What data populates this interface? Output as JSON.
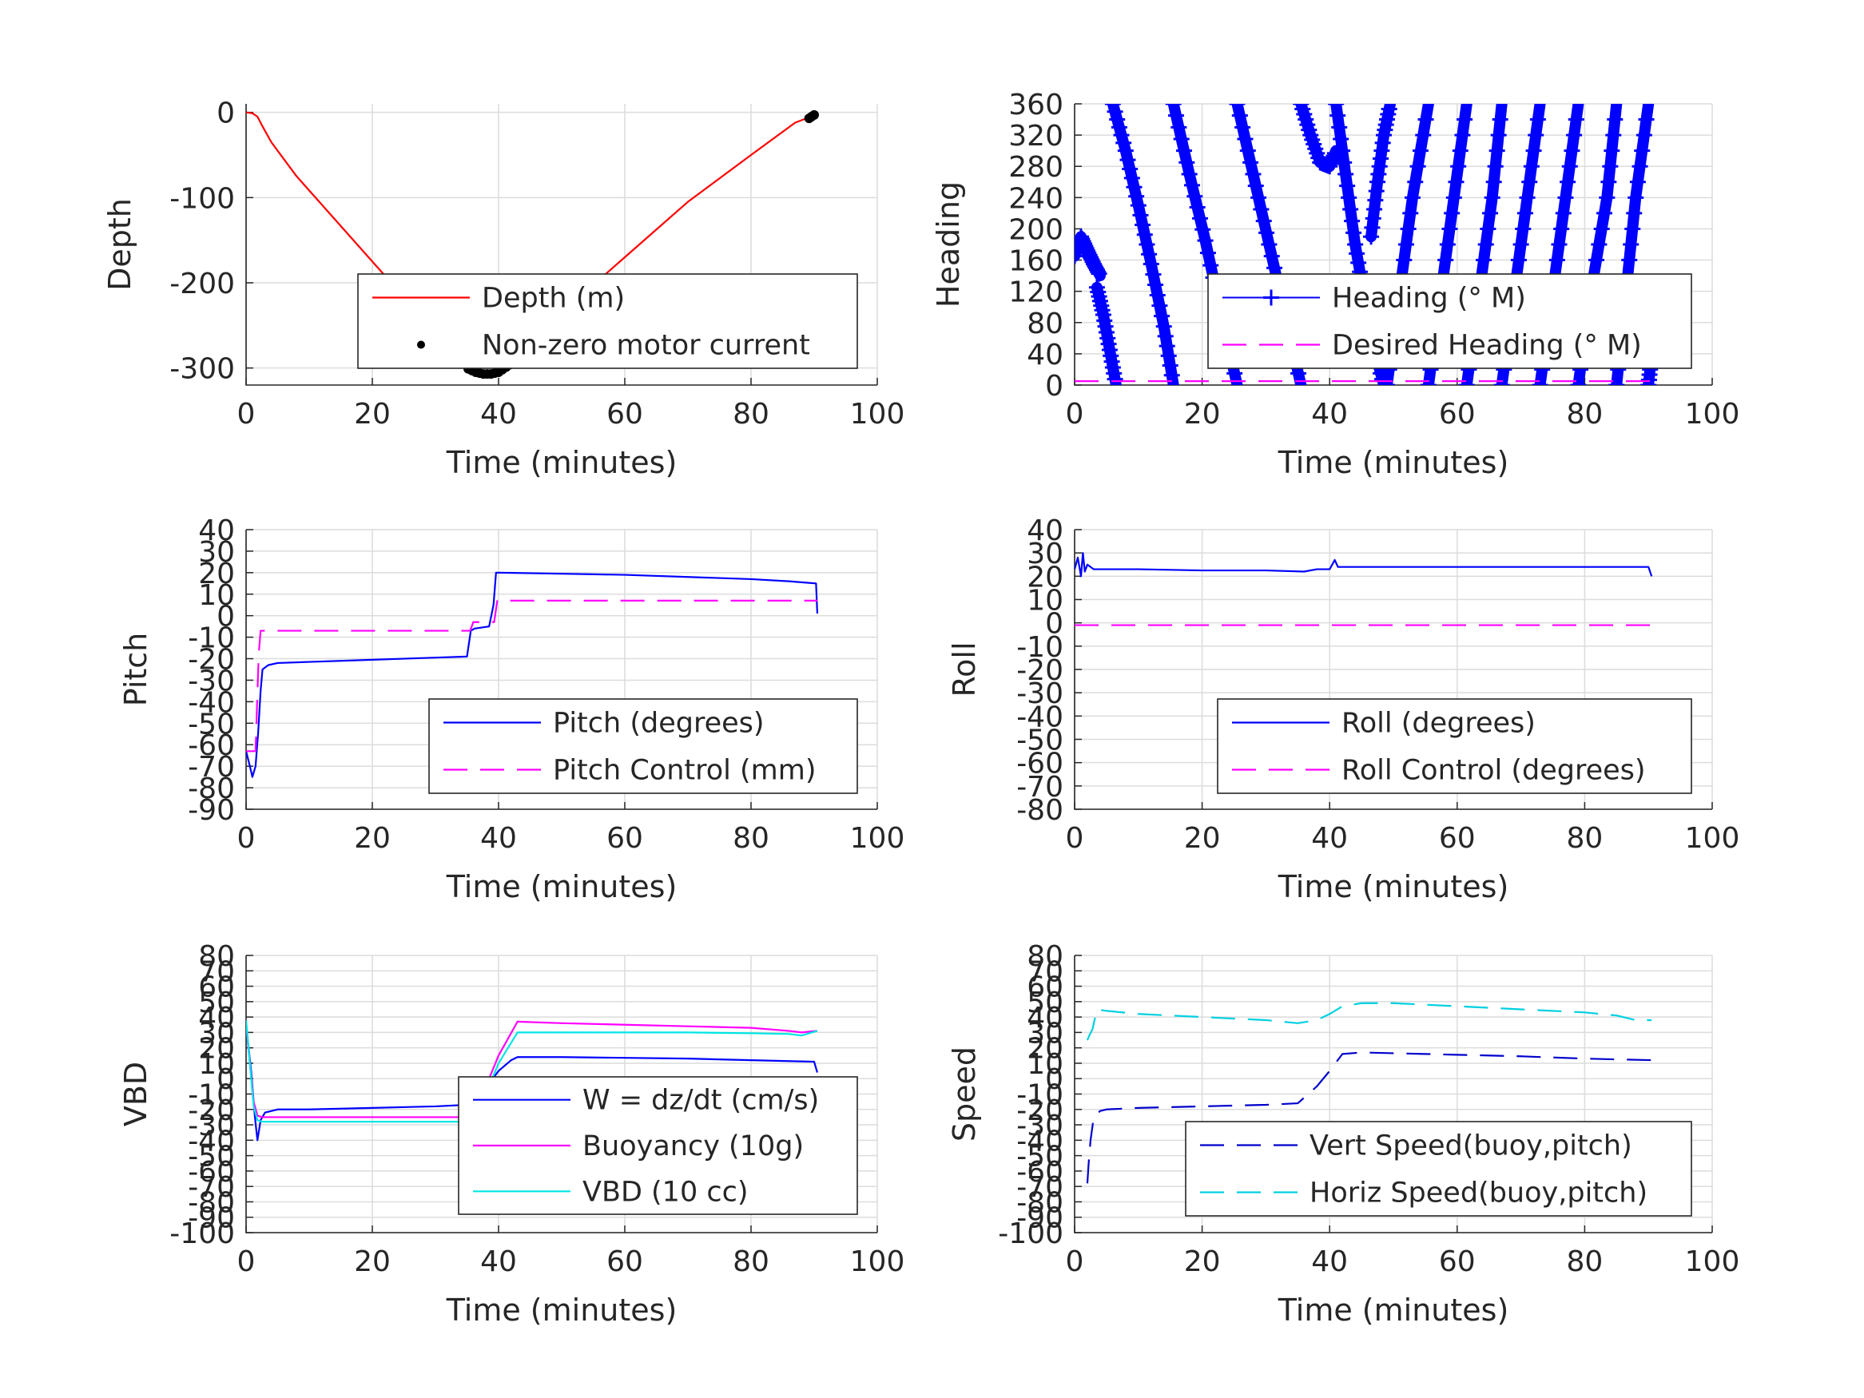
{
  "chart_data": [
    {
      "id": "depth",
      "type": "line",
      "xlabel": "Time (minutes)",
      "ylabel": "Depth",
      "xlim": [
        0,
        100
      ],
      "ylim": [
        -320,
        10
      ],
      "xticks": [
        0,
        20,
        40,
        60,
        80,
        100
      ],
      "yticks": [
        0,
        -100,
        -200,
        -300
      ],
      "grid": true,
      "legend_placement": "bottom-right",
      "series": [
        {
          "name": "Depth (m)",
          "color": "#ff0000",
          "style": "solid",
          "x": [
            0,
            1,
            1.8,
            2.5,
            4,
            8,
            14,
            20,
            26,
            30,
            34,
            35.5,
            37,
            38.5,
            40,
            41.5,
            43,
            50,
            60,
            70,
            80,
            87,
            89.5,
            90.5
          ],
          "y": [
            0,
            -1,
            -5,
            -15,
            -35,
            -75,
            -125,
            -175,
            -225,
            -258,
            -292,
            -302,
            -305,
            -306,
            -305,
            -300,
            -292,
            -235,
            -170,
            -105,
            -50,
            -12,
            -5,
            -2
          ]
        },
        {
          "name": "Non-zero motor current",
          "color": "#000000",
          "style": "dots",
          "x": [
            35.2,
            35.8,
            36.4,
            37,
            37.6,
            38.2,
            38.8,
            39.4,
            40,
            40.6,
            41.2,
            41.8,
            42.4,
            89.2,
            89.6,
            90
          ],
          "y": [
            -301,
            -303,
            -305,
            -306,
            -307,
            -307,
            -307,
            -306,
            -305,
            -302,
            -299,
            -296,
            -293,
            -7,
            -5,
            -3
          ]
        }
      ]
    },
    {
      "id": "heading",
      "type": "scatter",
      "xlabel": "Time (minutes)",
      "ylabel": "Heading",
      "xlim": [
        0,
        100
      ],
      "ylim": [
        0,
        360
      ],
      "xticks": [
        0,
        20,
        40,
        60,
        80,
        100
      ],
      "yticks": [
        0,
        40,
        80,
        120,
        160,
        200,
        240,
        280,
        320,
        360
      ],
      "grid": true,
      "legend_placement": "bottom-right",
      "series": [
        {
          "name": "Heading (° M)",
          "color": "#0000ff",
          "style": "plus",
          "segments": [
            {
              "x": [
                0,
                1,
                2,
                3,
                4
              ],
              "y": [
                165,
                190,
                172,
                155,
                140
              ]
            },
            {
              "x": [
                3.5,
                4.5,
                5.5,
                6.5
              ],
              "y": [
                125,
                90,
                45,
                0
              ]
            },
            {
              "x": [
                6,
                8,
                10,
                12,
                14,
                15.5
              ],
              "y": [
                360,
                300,
                230,
                155,
                75,
                0
              ]
            },
            {
              "x": [
                15.5,
                18,
                20.5,
                23,
                25.5
              ],
              "y": [
                360,
                270,
                185,
                90,
                0
              ]
            },
            {
              "x": [
                25.5,
                28,
                30.5,
                33,
                35.5
              ],
              "y": [
                360,
                270,
                180,
                90,
                0
              ]
            },
            {
              "x": [
                35.5,
                37,
                38.5,
                40,
                41
              ],
              "y": [
                360,
                320,
                285,
                280,
                300
              ]
            },
            {
              "x": [
                41,
                42.5,
                44,
                45.5,
                47,
                48.5
              ],
              "y": [
                360,
                270,
                180,
                110,
                45,
                0
              ]
            },
            {
              "x": [
                46.5,
                47.5,
                48.5,
                49.5
              ],
              "y": [
                190,
                260,
                320,
                360
              ]
            },
            {
              "x": [
                49,
                51,
                53,
                55.5
              ],
              "y": [
                0,
                120,
                240,
                360
              ]
            },
            {
              "x": [
                55.5,
                57.5,
                59.5,
                61.5
              ],
              "y": [
                0,
                120,
                240,
                360
              ]
            },
            {
              "x": [
                61.5,
                63.5,
                65.5,
                67
              ],
              "y": [
                0,
                120,
                240,
                360
              ]
            },
            {
              "x": [
                67,
                69,
                71,
                73
              ],
              "y": [
                0,
                120,
                240,
                360
              ]
            },
            {
              "x": [
                73,
                75,
                77,
                79
              ],
              "y": [
                0,
                120,
                240,
                360
              ]
            },
            {
              "x": [
                79,
                81,
                83.5,
                85
              ],
              "y": [
                0,
                120,
                240,
                360
              ]
            },
            {
              "x": [
                85,
                86.5,
                88,
                90
              ],
              "y": [
                0,
                120,
                240,
                360
              ]
            },
            {
              "x": [
                90,
                90.5,
                91
              ],
              "y": [
                0,
                40,
                78
              ]
            }
          ]
        },
        {
          "name": "Desired Heading (° M)",
          "color": "#ff00ff",
          "style": "dashed",
          "x": [
            0,
            91
          ],
          "y": [
            5,
            5
          ]
        }
      ]
    },
    {
      "id": "pitch",
      "type": "line",
      "xlabel": "Time (minutes)",
      "ylabel": "Pitch",
      "xlim": [
        0,
        100
      ],
      "ylim": [
        -90,
        40
      ],
      "xticks": [
        0,
        20,
        40,
        60,
        80,
        100
      ],
      "yticks": [
        40,
        30,
        20,
        10,
        0,
        -10,
        -20,
        -30,
        -40,
        -50,
        -60,
        -70,
        -80,
        -90
      ],
      "grid": true,
      "legend_placement": "bottom-right",
      "series": [
        {
          "name": "Pitch (degrees)",
          "color": "#0000ff",
          "style": "solid",
          "x": [
            0,
            0.6,
            1,
            1.5,
            1.9,
            2.3,
            2.6,
            3.5,
            5,
            10,
            20,
            30,
            35,
            35.6,
            36.2,
            38.5,
            39.2,
            39.6,
            40,
            50,
            60,
            70,
            80,
            86,
            90.3,
            90.5
          ],
          "y": [
            -63,
            -70,
            -75,
            -70,
            -55,
            -35,
            -25,
            -23,
            -22,
            -21.5,
            -20.5,
            -19.5,
            -19,
            -7,
            -6,
            -5,
            5,
            20,
            20,
            19.5,
            19,
            18,
            17,
            16,
            15,
            1
          ]
        },
        {
          "name": "Pitch Control (mm)",
          "color": "#ff00ff",
          "style": "dashed",
          "x": [
            0,
            1.5,
            2,
            2.3,
            35.5,
            36,
            39.3,
            39.8,
            90.5
          ],
          "y": [
            -63,
            -63,
            -18,
            -7,
            -7,
            -3,
            -3,
            7,
            7
          ]
        }
      ]
    },
    {
      "id": "roll",
      "type": "line",
      "xlabel": "Time (minutes)",
      "ylabel": "Roll",
      "xlim": [
        0,
        100
      ],
      "ylim": [
        -80,
        40
      ],
      "xticks": [
        0,
        20,
        40,
        60,
        80,
        100
      ],
      "yticks": [
        40,
        30,
        20,
        10,
        0,
        -10,
        -20,
        -30,
        -40,
        -50,
        -60,
        -70,
        -80
      ],
      "grid": true,
      "legend_placement": "bottom-right",
      "series": [
        {
          "name": "Roll (degrees)",
          "color": "#0000ff",
          "style": "solid",
          "x": [
            0,
            0.5,
            1,
            1.3,
            1.6,
            2,
            3,
            10,
            20,
            30,
            36,
            38,
            40,
            40.8,
            41.3,
            50,
            60,
            70,
            80,
            90,
            90.5
          ],
          "y": [
            23,
            28,
            20,
            30,
            22,
            25,
            23,
            23,
            22.5,
            22.5,
            22,
            23,
            23,
            27,
            24,
            24,
            24,
            24,
            24,
            24,
            20
          ]
        },
        {
          "name": "Roll Control (degrees)",
          "color": "#ff00ff",
          "style": "dashed",
          "x": [
            0,
            91
          ],
          "y": [
            -1,
            -1
          ]
        }
      ]
    },
    {
      "id": "vbd",
      "type": "line",
      "xlabel": "Time (minutes)",
      "ylabel": "VBD",
      "xlim": [
        0,
        100
      ],
      "ylim": [
        -100,
        80
      ],
      "xticks": [
        0,
        20,
        40,
        60,
        80,
        100
      ],
      "yticks": [
        80,
        70,
        60,
        50,
        40,
        30,
        20,
        10,
        0,
        -10,
        -20,
        -30,
        -40,
        -50,
        -60,
        -70,
        -80,
        -90,
        -100
      ],
      "grid": true,
      "legend_placement": "bottom-right",
      "series": [
        {
          "name": "W = dz/dt (cm/s)",
          "color": "#0000ff",
          "style": "solid",
          "x": [
            0,
            0.8,
            1.4,
            1.8,
            2.3,
            3,
            5,
            10,
            20,
            30,
            35,
            35.6,
            38,
            40,
            42,
            43,
            50,
            60,
            70,
            80,
            90,
            90.5
          ],
          "y": [
            35,
            5,
            -25,
            -40,
            -27,
            -22,
            -20,
            -20,
            -19,
            -18,
            -17,
            -12,
            -6,
            5,
            12,
            14,
            14,
            13.5,
            13,
            12,
            11,
            4
          ]
        },
        {
          "name": "Buoyancy (10g)",
          "color": "#ff00ff",
          "style": "solid",
          "x": [
            0,
            1.2,
            1.8,
            2.5,
            35,
            36,
            38,
            40,
            43,
            50,
            60,
            70,
            80,
            86,
            88,
            90.5
          ],
          "y": [
            35,
            -15,
            -24,
            -25,
            -25,
            -21,
            -5,
            15,
            37,
            36,
            35,
            34,
            33,
            31,
            30,
            31
          ]
        },
        {
          "name": "VBD (10 cc)",
          "color": "#00e5e5",
          "style": "solid",
          "x": [
            0,
            1.2,
            1.8,
            2.5,
            35,
            36,
            38,
            40,
            43,
            50,
            60,
            70,
            80,
            86,
            88,
            90.5
          ],
          "y": [
            38,
            -18,
            -27,
            -28,
            -28,
            -26,
            -10,
            10,
            30,
            30,
            30,
            30,
            29.5,
            29,
            28,
            31
          ]
        }
      ]
    },
    {
      "id": "speed",
      "type": "line",
      "xlabel": "Time (minutes)",
      "ylabel": "Speed",
      "xlim": [
        0,
        100
      ],
      "ylim": [
        -100,
        80
      ],
      "xticks": [
        0,
        20,
        40,
        60,
        80,
        100
      ],
      "yticks": [
        80,
        70,
        60,
        50,
        40,
        30,
        20,
        10,
        0,
        -10,
        -20,
        -30,
        -40,
        -50,
        -60,
        -70,
        -80,
        -90,
        -100
      ],
      "grid": true,
      "legend_placement": "bottom-right",
      "series": [
        {
          "name": "Vert Speed(buoy,pitch)",
          "color": "#0000cc",
          "style": "dashed",
          "x": [
            2,
            2.2,
            2.5,
            3,
            4,
            5,
            10,
            20,
            30,
            35,
            38,
            40,
            42,
            45,
            50,
            60,
            70,
            80,
            85,
            90.5
          ],
          "y": [
            -68,
            -55,
            -40,
            -25,
            -21,
            -20,
            -19,
            -18,
            -17,
            -16,
            -5,
            5,
            16,
            17,
            16.5,
            15.5,
            14.5,
            13,
            12.5,
            12
          ]
        },
        {
          "name": "Horiz Speed(buoy,pitch)",
          "color": "#00d0e0",
          "style": "dashed",
          "x": [
            2,
            2.3,
            2.8,
            3.5,
            5,
            10,
            20,
            30,
            35,
            38,
            40,
            42,
            45,
            50,
            60,
            70,
            80,
            85,
            88,
            90.5
          ],
          "y": [
            25,
            28,
            32,
            45,
            44,
            42,
            40,
            38,
            36,
            38,
            42,
            47,
            49,
            49,
            47,
            45,
            43,
            41,
            38,
            38
          ]
        }
      ]
    }
  ]
}
